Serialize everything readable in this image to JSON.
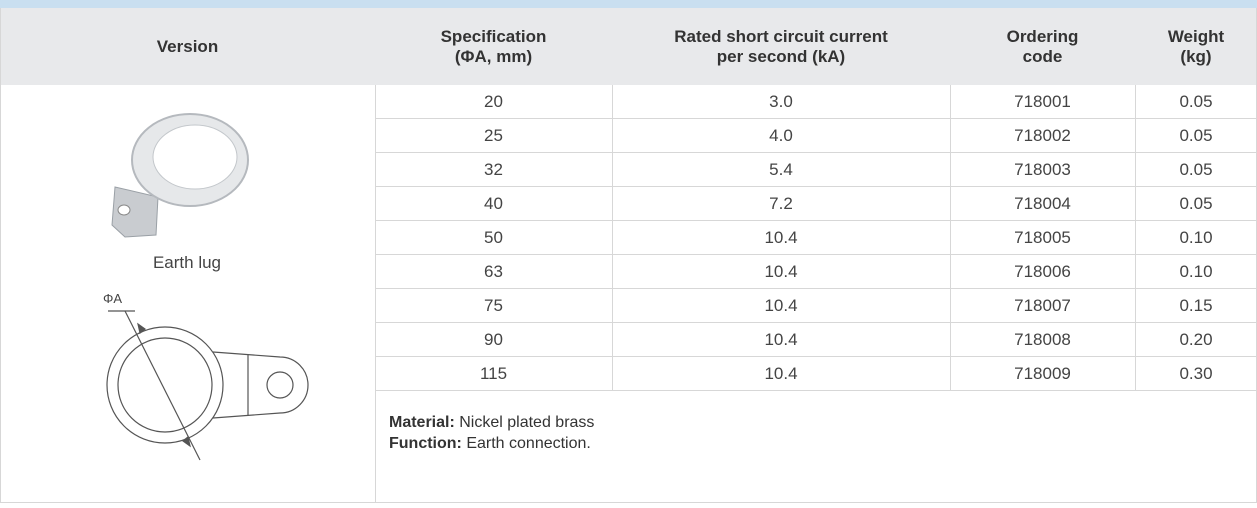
{
  "table": {
    "header": [
      [
        "Version"
      ],
      [
        "Specification",
        "(ΦA, mm)"
      ],
      [
        "Rated short circuit current",
        "per second (kA)"
      ],
      [
        "Ordering",
        "code"
      ],
      [
        "Weight",
        "(kg)"
      ]
    ],
    "version": {
      "label": "Earth lug",
      "dimension": "ΦA"
    },
    "rows": [
      [
        "20",
        "3.0",
        "718001",
        "0.05"
      ],
      [
        "25",
        "4.0",
        "718002",
        "0.05"
      ],
      [
        "32",
        "5.4",
        "718003",
        "0.05"
      ],
      [
        "40",
        "7.2",
        "718004",
        "0.05"
      ],
      [
        "50",
        "10.4",
        "718005",
        "0.10"
      ],
      [
        "63",
        "10.4",
        "718006",
        "0.10"
      ],
      [
        "75",
        "10.4",
        "718007",
        "0.15"
      ],
      [
        "90",
        "10.4",
        "718008",
        "0.20"
      ],
      [
        "115",
        "10.4",
        "718009",
        "0.30"
      ]
    ],
    "notes": [
      {
        "label": "Material:",
        "text": "Nickel plated brass"
      },
      {
        "label": "Function:",
        "text": "Earth connection."
      }
    ]
  }
}
